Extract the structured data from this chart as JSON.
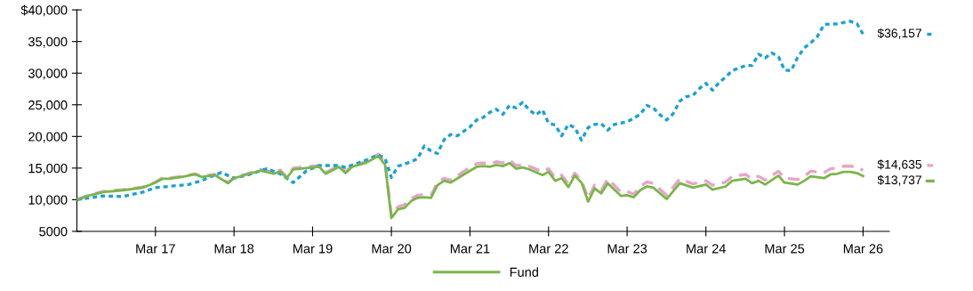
{
  "chart_data": {
    "type": "line",
    "legend": "bottom",
    "grid": false,
    "marker": "none",
    "xlim": [
      "2016-03",
      "2026-07"
    ],
    "xticks": [
      {
        "value": "2017-03",
        "label": "Mar 17"
      },
      {
        "value": "2018-03",
        "label": "Mar 18"
      },
      {
        "value": "2019-03",
        "label": "Mar 19"
      },
      {
        "value": "2020-03",
        "label": "Mar 20"
      },
      {
        "value": "2021-03",
        "label": "Mar 21"
      },
      {
        "value": "2022-03",
        "label": "Mar 22"
      },
      {
        "value": "2023-03",
        "label": "Mar 23"
      },
      {
        "value": "2024-03",
        "label": "Mar 24"
      },
      {
        "value": "2025-03",
        "label": "Mar 25"
      },
      {
        "value": "2026-03",
        "label": "Mar 26"
      }
    ],
    "ylim": [
      5000,
      40000
    ],
    "yticks": [
      5000,
      {
        "value": 10000,
        "label": "10,000"
      },
      {
        "value": 15000,
        "label": "15,000"
      },
      {
        "value": 20000,
        "label": "20,000"
      },
      {
        "value": 25000,
        "label": "25,000"
      },
      {
        "value": 30000,
        "label": "30,000"
      },
      {
        "value": 35000,
        "label": "35,000"
      },
      {
        "value": 40000,
        "label": "$40,000"
      }
    ],
    "annotations": [
      {
        "text": "$36,157",
        "x": "2026-03",
        "y": 36157
      },
      {
        "text": "$14,635",
        "x": "2026-03",
        "y": 14635
      },
      {
        "text": "$13,737",
        "x": "2026-03",
        "y": 13737
      }
    ],
    "series": [
      {
        "name": "Fund",
        "color": "#7ab648",
        "line_style": "solid",
        "x": [
          "2016-03",
          "2016-05",
          "2016-07",
          "2016-10",
          "2017-01",
          "2017-03",
          "2017-04",
          "2017-05",
          "2017-07",
          "2017-09",
          "2017-10",
          "2017-12",
          "2018-02",
          "2018-03",
          "2018-05",
          "2018-07",
          "2018-09",
          "2018-10",
          "2018-11",
          "2018-12",
          "2019-03",
          "2019-04",
          "2019-05",
          "2019-07",
          "2019-08",
          "2019-09",
          "2019-11",
          "2020-01",
          "2020-02",
          "2020-03",
          "2020-04",
          "2020-05",
          "2020-06",
          "2020-07",
          "2020-08",
          "2020-09",
          "2020-10",
          "2020-11",
          "2020-12",
          "2021-02",
          "2021-04",
          "2021-05",
          "2021-06",
          "2021-07",
          "2021-08",
          "2021-09",
          "2021-10",
          "2021-11",
          "2021-12",
          "2022-02",
          "2022-03",
          "2022-04",
          "2022-05",
          "2022-06",
          "2022-07",
          "2022-08",
          "2022-09",
          "2022-10",
          "2022-11",
          "2022-12",
          "2023-02",
          "2023-03",
          "2023-04",
          "2023-05",
          "2023-06",
          "2023-07",
          "2023-09",
          "2023-11",
          "2024-01",
          "2024-03",
          "2024-04",
          "2024-06",
          "2024-07",
          "2024-09",
          "2024-10",
          "2024-11",
          "2024-12",
          "2025-02",
          "2025-03",
          "2025-05",
          "2025-06",
          "2025-07",
          "2025-09",
          "2025-10",
          "2025-11",
          "2025-12",
          "2026-01",
          "2026-02",
          "2026-03"
        ],
        "values": [
          10000,
          10700,
          11200,
          11500,
          11900,
          12700,
          13300,
          13300,
          13600,
          14000,
          13600,
          13900,
          12600,
          13400,
          14000,
          14600,
          14100,
          14500,
          13400,
          14800,
          15100,
          15200,
          14100,
          15200,
          14200,
          15200,
          15800,
          16900,
          15500,
          7100,
          8500,
          8700,
          9800,
          10300,
          10400,
          10300,
          12300,
          13000,
          12700,
          14000,
          15200,
          15300,
          15200,
          15500,
          15300,
          15800,
          14900,
          15100,
          14800,
          13900,
          14400,
          13000,
          13400,
          12000,
          13800,
          12700,
          9700,
          11800,
          11000,
          12600,
          10600,
          10700,
          10400,
          11500,
          12100,
          11900,
          10100,
          12600,
          11900,
          12400,
          11600,
          12100,
          13000,
          13300,
          12600,
          13000,
          12400,
          13800,
          12700,
          12400,
          13000,
          13700,
          13400,
          14000,
          14100,
          14400,
          14400,
          14200,
          13737
        ]
      },
      {
        "color": "#1ba1d6",
        "line_style": "dotted",
        "x": [
          "2016-03",
          "2016-07",
          "2016-10",
          "2017-01",
          "2017-03",
          "2017-05",
          "2017-08",
          "2017-10",
          "2017-12",
          "2018-01",
          "2018-03",
          "2018-05",
          "2018-08",
          "2018-10",
          "2018-12",
          "2019-02",
          "2019-04",
          "2019-07",
          "2019-08",
          "2019-11",
          "2020-01",
          "2020-02",
          "2020-03",
          "2020-04",
          "2020-06",
          "2020-07",
          "2020-08",
          "2020-09",
          "2020-10",
          "2020-11",
          "2020-12",
          "2021-01",
          "2021-03",
          "2021-04",
          "2021-05",
          "2021-06",
          "2021-07",
          "2021-08",
          "2021-09",
          "2021-10",
          "2021-11",
          "2021-12",
          "2022-01",
          "2022-02",
          "2022-03",
          "2022-04",
          "2022-05",
          "2022-06",
          "2022-07",
          "2022-08",
          "2022-09",
          "2022-10",
          "2022-11",
          "2022-12",
          "2023-01",
          "2023-03",
          "2023-05",
          "2023-06",
          "2023-07",
          "2023-08",
          "2023-09",
          "2023-10",
          "2023-11",
          "2023-12",
          "2024-01",
          "2024-02",
          "2024-03",
          "2024-04",
          "2024-05",
          "2024-06",
          "2024-07",
          "2024-09",
          "2024-10",
          "2024-11",
          "2024-12",
          "2025-01",
          "2025-02",
          "2025-03",
          "2025-04",
          "2025-05",
          "2025-06",
          "2025-07",
          "2025-08",
          "2025-09",
          "2025-11",
          "2025-12",
          "2026-01",
          "2026-02",
          "2026-03"
        ],
        "values": [
          10000,
          10600,
          10500,
          11200,
          11900,
          12100,
          12400,
          13000,
          13900,
          14300,
          13400,
          13900,
          14900,
          14100,
          12700,
          14600,
          15400,
          15400,
          15100,
          16200,
          17100,
          16500,
          13500,
          15300,
          16000,
          16500,
          18500,
          17700,
          17300,
          19500,
          20300,
          20100,
          21500,
          22600,
          23000,
          23800,
          24300,
          23500,
          24900,
          24500,
          25400,
          24200,
          23400,
          24200,
          22100,
          21800,
          20100,
          21900,
          21400,
          19400,
          21400,
          21900,
          22000,
          21000,
          21900,
          22300,
          23500,
          24900,
          24500,
          23400,
          22600,
          23600,
          25600,
          26300,
          26500,
          27600,
          28400,
          27300,
          28500,
          29400,
          30400,
          31200,
          31200,
          33000,
          32400,
          33200,
          32600,
          30500,
          30400,
          32500,
          34000,
          34800,
          35800,
          37700,
          37800,
          38000,
          38200,
          37800,
          36157
        ]
      },
      {
        "color": "#e6a5c8",
        "line_style": "dashed",
        "x": [
          "2016-03",
          "2016-05",
          "2016-07",
          "2016-10",
          "2017-01",
          "2017-03",
          "2017-04",
          "2017-05",
          "2017-07",
          "2017-09",
          "2017-10",
          "2017-12",
          "2018-02",
          "2018-03",
          "2018-05",
          "2018-07",
          "2018-09",
          "2018-10",
          "2018-11",
          "2018-12",
          "2019-03",
          "2019-04",
          "2019-05",
          "2019-07",
          "2019-08",
          "2019-09",
          "2019-11",
          "2020-01",
          "2020-02",
          "2020-03",
          "2020-04",
          "2020-05",
          "2020-06",
          "2020-07",
          "2020-08",
          "2020-09",
          "2020-10",
          "2020-11",
          "2020-12",
          "2021-02",
          "2021-04",
          "2021-05",
          "2021-06",
          "2021-07",
          "2021-08",
          "2021-09",
          "2021-10",
          "2021-11",
          "2021-12",
          "2022-02",
          "2022-03",
          "2022-04",
          "2022-05",
          "2022-06",
          "2022-07",
          "2022-08",
          "2022-09",
          "2022-10",
          "2022-11",
          "2022-12",
          "2023-02",
          "2023-03",
          "2023-04",
          "2023-05",
          "2023-06",
          "2023-07",
          "2023-09",
          "2023-11",
          "2024-01",
          "2024-03",
          "2024-04",
          "2024-06",
          "2024-07",
          "2024-09",
          "2024-10",
          "2024-11",
          "2024-12",
          "2025-02",
          "2025-03",
          "2025-05",
          "2025-06",
          "2025-07",
          "2025-09",
          "2025-10",
          "2025-11",
          "2025-12",
          "2026-01",
          "2026-02",
          "2026-03"
        ],
        "values": [
          10000,
          10800,
          11300,
          11600,
          12000,
          12800,
          13400,
          13400,
          13700,
          14100,
          13700,
          14000,
          12700,
          13500,
          14100,
          14800,
          14300,
          14700,
          13600,
          15000,
          15300,
          15400,
          14300,
          15400,
          14400,
          15400,
          16000,
          17200,
          15800,
          7500,
          8900,
          9200,
          10200,
          10700,
          10800,
          10700,
          12700,
          13400,
          13100,
          14500,
          15700,
          15800,
          15700,
          16000,
          15800,
          16300,
          15400,
          15500,
          15300,
          14400,
          14900,
          13500,
          13900,
          12500,
          14200,
          13100,
          10200,
          12300,
          11500,
          13300,
          11200,
          11300,
          10900,
          12100,
          12800,
          12600,
          10700,
          13300,
          12500,
          13000,
          12300,
          12800,
          13700,
          14000,
          13300,
          13700,
          13100,
          14500,
          13400,
          13200,
          13700,
          14500,
          14300,
          14900,
          15000,
          15300,
          15300,
          15200,
          14635
        ]
      }
    ]
  }
}
